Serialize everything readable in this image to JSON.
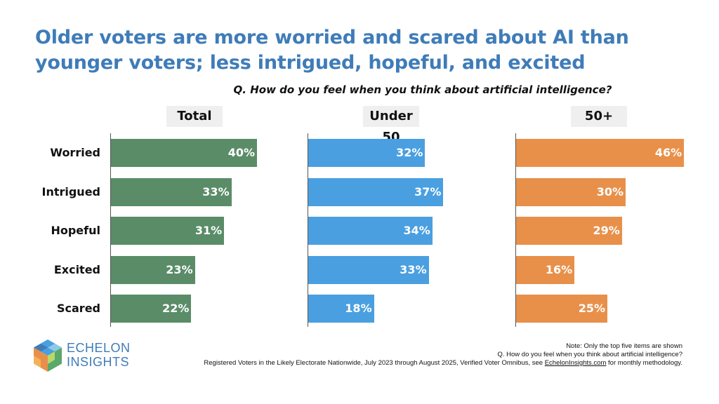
{
  "title_line1": "Older voters are more worried and scared about AI than",
  "title_line2": "younger voters; less intrigued, hopeful, and excited",
  "question": "Q. How do you feel when you think about artificial intelligence?",
  "colors": {
    "title": "#3f7cb8",
    "total": "#5a8c68",
    "under50": "#4a9fe0",
    "over50": "#e8904a"
  },
  "chart_data": {
    "type": "bar",
    "orientation": "horizontal",
    "categories": [
      "Worried",
      "Intrigued",
      "Hopeful",
      "Excited",
      "Scared"
    ],
    "series": [
      {
        "name": "Total",
        "values": [
          40,
          33,
          31,
          23,
          22
        ],
        "labels": [
          "40%",
          "33%",
          "31%",
          "23%",
          "22%"
        ],
        "color": "#5a8c68"
      },
      {
        "name": "Under 50",
        "values": [
          32,
          37,
          34,
          33,
          18
        ],
        "labels": [
          "32%",
          "37%",
          "34%",
          "33%",
          "18%"
        ],
        "color": "#4a9fe0"
      },
      {
        "name": "50+",
        "values": [
          46,
          30,
          29,
          16,
          25
        ],
        "labels": [
          "46%",
          "30%",
          "29%",
          "16%",
          "25%"
        ],
        "color": "#e8904a"
      }
    ],
    "unit": "%",
    "xlim": [
      0,
      46
    ]
  },
  "logo": {
    "line1": "ECHELON",
    "line2": "INSIGHTS",
    "icon": "cube-logo-icon"
  },
  "notes": {
    "line1": "Note: Only the top five items are shown",
    "line2": "Q. How do you feel when you think about artificial intelligence?",
    "line3_pre": "Registered Voters in the Likely Electorate Nationwide, July 2023 through August 2025, Verified Voter Omnibus, see ",
    "line3_link": "EchelonInsights.com",
    "line3_post": " for monthly methodology."
  }
}
